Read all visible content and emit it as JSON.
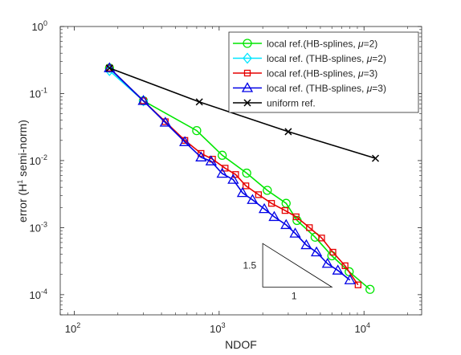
{
  "chart_data": {
    "type": "line",
    "xlabel": "NDOF",
    "ylabel_main": "error (H",
    "ylabel_sup": "1",
    "ylabel_end": " semi-norm)",
    "x_scale": "log",
    "y_scale": "log",
    "xlim": [
      80,
      25000
    ],
    "ylim": [
      5e-05,
      1
    ],
    "x_ticks": [
      {
        "value": 100,
        "base": "10",
        "exp": "2"
      },
      {
        "value": 1000,
        "base": "10",
        "exp": "3"
      },
      {
        "value": 10000,
        "base": "10",
        "exp": "4"
      }
    ],
    "y_ticks": [
      {
        "value": 1,
        "base": "10",
        "exp": "0"
      },
      {
        "value": 0.1,
        "base": "10",
        "exp": "-1"
      },
      {
        "value": 0.01,
        "base": "10",
        "exp": "-2"
      },
      {
        "value": 0.001,
        "base": "10",
        "exp": "-3"
      },
      {
        "value": 0.0001,
        "base": "10",
        "exp": "-4"
      }
    ],
    "grid": false,
    "legend_position": "top-right",
    "series": [
      {
        "legend_prefix": "local ref.(HB-splines, ",
        "legend_mu": "μ",
        "legend_suffix": "=2)",
        "color": "#00e600",
        "marker": "circle",
        "x": [
          175,
          300,
          700,
          1050,
          1550,
          2150,
          2900,
          3450,
          4600,
          6000,
          7900,
          11000
        ],
        "y": [
          0.24,
          0.078,
          0.028,
          0.012,
          0.0065,
          0.0036,
          0.0023,
          0.00128,
          0.00072,
          0.00038,
          0.00022,
          0.00012
        ]
      },
      {
        "legend_prefix": "local ref. (THB-splines, ",
        "legend_mu": "μ",
        "legend_suffix": "=2)",
        "color": "#00e6ff",
        "marker": "diamond",
        "x": [
          175,
          300
        ],
        "y": [
          0.22,
          0.078
        ]
      },
      {
        "legend_prefix": "local ref.(HB-splines, ",
        "legend_mu": "μ",
        "legend_suffix": "=3)",
        "color": "#e60000",
        "marker": "square",
        "x": [
          175,
          300,
          425,
          580,
          750,
          900,
          1100,
          1300,
          1530,
          1870,
          2300,
          2850,
          3400,
          4200,
          5100,
          6100,
          7400,
          9100
        ],
        "y": [
          0.24,
          0.078,
          0.038,
          0.02,
          0.0128,
          0.0105,
          0.0077,
          0.0062,
          0.0042,
          0.0031,
          0.0023,
          0.0018,
          0.00145,
          0.001,
          0.0007,
          0.00043,
          0.00027,
          0.00014
        ]
      },
      {
        "legend_prefix": "local ref. (THB-splines, ",
        "legend_mu": "μ",
        "legend_suffix": "=3)",
        "color": "#0000e6",
        "marker": "triangle",
        "x": [
          175,
          300,
          425,
          580,
          750,
          880,
          1050,
          1250,
          1450,
          1700,
          2050,
          2400,
          2900,
          3350,
          4000,
          4700,
          5600,
          6600,
          8000
        ],
        "y": [
          0.24,
          0.078,
          0.037,
          0.019,
          0.0112,
          0.0098,
          0.0064,
          0.0052,
          0.0033,
          0.0026,
          0.0019,
          0.00145,
          0.0011,
          0.00082,
          0.00055,
          0.00043,
          0.00029,
          0.00023,
          0.000165
        ]
      },
      {
        "legend_prefix": "uniform ref.",
        "legend_mu": "",
        "legend_suffix": "",
        "color": "#000000",
        "marker": "x",
        "x": [
          175,
          730,
          3000,
          12000
        ],
        "y": [
          0.24,
          0.075,
          0.027,
          0.0108
        ]
      }
    ],
    "slope_triangle": {
      "vertices": [
        [
          6000,
          0.00013
        ],
        [
          2000,
          0.00013
        ],
        [
          2000,
          0.00058
        ]
      ],
      "label_vertical": "1.5",
      "label_horizontal": "1"
    }
  }
}
